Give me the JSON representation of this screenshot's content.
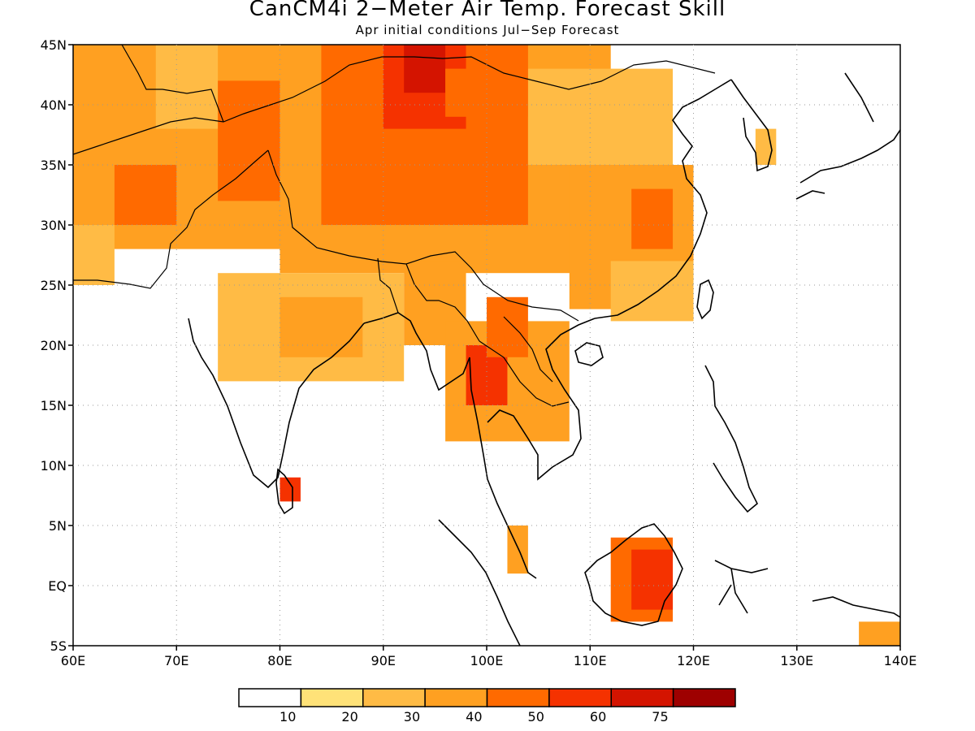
{
  "title": "CanCM4i 2−Meter Air Temp. Forecast Skill",
  "subtitle": "Apr initial conditions   Jul−Sep Forecast",
  "map": {
    "lon_range": [
      60,
      140
    ],
    "lat_range": [
      -5,
      45
    ],
    "x_ticks": [
      "60E",
      "70E",
      "80E",
      "90E",
      "100E",
      "110E",
      "120E",
      "130E",
      "140E"
    ],
    "y_ticks": [
      "5S",
      "EQ",
      "5N",
      "10N",
      "15N",
      "20N",
      "25N",
      "30N",
      "35N",
      "40N",
      "45N"
    ],
    "gridlines": "dotted"
  },
  "colorbar": {
    "colors": [
      "#ffffff",
      "#ffe278",
      "#ffbb45",
      "#ffa021",
      "#ff6a00",
      "#f53200",
      "#d41400",
      "#9e0000"
    ],
    "labels": [
      "10",
      "20",
      "30",
      "40",
      "50",
      "60",
      "75"
    ]
  },
  "chart_data": {
    "type": "heatmap",
    "variable": "2-meter air temperature forecast skill",
    "regions": [
      {
        "lon": [
          60,
          80
        ],
        "lat": [
          28,
          45
        ],
        "level": 3
      },
      {
        "lon": [
          64,
          70
        ],
        "lat": [
          30,
          35
        ],
        "level": 4
      },
      {
        "lon": [
          68,
          74
        ],
        "lat": [
          38,
          45
        ],
        "level": 2
      },
      {
        "lon": [
          74,
          82
        ],
        "lat": [
          32,
          42
        ],
        "level": 4
      },
      {
        "lon": [
          80,
          112
        ],
        "lat": [
          26,
          45
        ],
        "level": 3
      },
      {
        "lon": [
          84,
          104
        ],
        "lat": [
          30,
          45
        ],
        "level": 4
      },
      {
        "lon": [
          90,
          98
        ],
        "lat": [
          38,
          45
        ],
        "level": 5
      },
      {
        "lon": [
          92,
          96
        ],
        "lat": [
          41,
          45
        ],
        "level": 6
      },
      {
        "lon": [
          96,
          104
        ],
        "lat": [
          39,
          43
        ],
        "level": 4
      },
      {
        "lon": [
          104,
          118
        ],
        "lat": [
          35,
          43
        ],
        "level": 2
      },
      {
        "lon": [
          108,
          120
        ],
        "lat": [
          23,
          35
        ],
        "level": 3
      },
      {
        "lon": [
          112,
          120
        ],
        "lat": [
          22,
          27
        ],
        "level": 2
      },
      {
        "lon": [
          74,
          92
        ],
        "lat": [
          17,
          26
        ],
        "level": 2
      },
      {
        "lon": [
          80,
          88
        ],
        "lat": [
          19,
          24
        ],
        "level": 3
      },
      {
        "lon": [
          92,
          98
        ],
        "lat": [
          20,
          27
        ],
        "level": 3
      },
      {
        "lon": [
          96,
          108
        ],
        "lat": [
          12,
          22
        ],
        "level": 3
      },
      {
        "lon": [
          98,
          102
        ],
        "lat": [
          15,
          20
        ],
        "level": 5
      },
      {
        "lon": [
          100,
          104
        ],
        "lat": [
          19,
          24
        ],
        "level": 4
      },
      {
        "lon": [
          80,
          82
        ],
        "lat": [
          7,
          9
        ],
        "level": 5
      },
      {
        "lon": [
          112,
          118
        ],
        "lat": [
          -3,
          4
        ],
        "level": 4
      },
      {
        "lon": [
          114,
          118
        ],
        "lat": [
          -2,
          3
        ],
        "level": 5
      },
      {
        "lon": [
          102,
          104
        ],
        "lat": [
          1,
          5
        ],
        "level": 3
      },
      {
        "lon": [
          60,
          64
        ],
        "lat": [
          25,
          30
        ],
        "level": 2
      },
      {
        "lon": [
          114,
          118
        ],
        "lat": [
          28,
          33
        ],
        "level": 4
      },
      {
        "lon": [
          126,
          128
        ],
        "lat": [
          35,
          38
        ],
        "level": 2
      },
      {
        "lon": [
          136,
          140
        ],
        "lat": [
          -5,
          -3
        ],
        "level": 3
      }
    ]
  }
}
